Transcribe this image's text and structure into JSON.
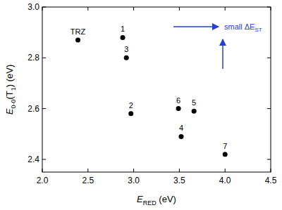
{
  "chart_data": {
    "type": "scatter",
    "x": [
      2.39,
      2.88,
      2.92,
      2.97,
      3.49,
      3.66,
      3.52,
      4.0
    ],
    "values": [
      2.87,
      2.88,
      2.8,
      2.58,
      2.6,
      2.59,
      2.49,
      2.42
    ],
    "labels": [
      "TRZ",
      "1",
      "3",
      "2",
      "6",
      "5",
      "4",
      "7"
    ],
    "color": "#000000",
    "marker": "circle",
    "xlim": [
      2.0,
      4.5
    ],
    "xticks": [
      {
        "value": 2,
        "label": "2.0"
      },
      2.5,
      {
        "value": 3,
        "label": "3.0"
      },
      3.5,
      {
        "value": 4,
        "label": "4.0"
      },
      4.5
    ],
    "ylim": [
      2.35,
      3.0
    ],
    "yticks": [
      2.4,
      2.6,
      2.8,
      {
        "value": 3,
        "label": "3.0"
      }
    ],
    "xlabel": [
      {
        "text": "E"
      },
      {
        "sub": "RED"
      },
      {
        "text": " (eV)"
      }
    ],
    "ylabel": [
      {
        "text": "E"
      },
      {
        "sub": "0-0"
      },
      {
        "text": "(T"
      },
      {
        "sub": "1"
      },
      {
        "text": ") (eV)"
      }
    ],
    "annotation": [
      {
        "text": "small ΔE"
      },
      {
        "sub": "ST"
      }
    ],
    "grid": false
  }
}
